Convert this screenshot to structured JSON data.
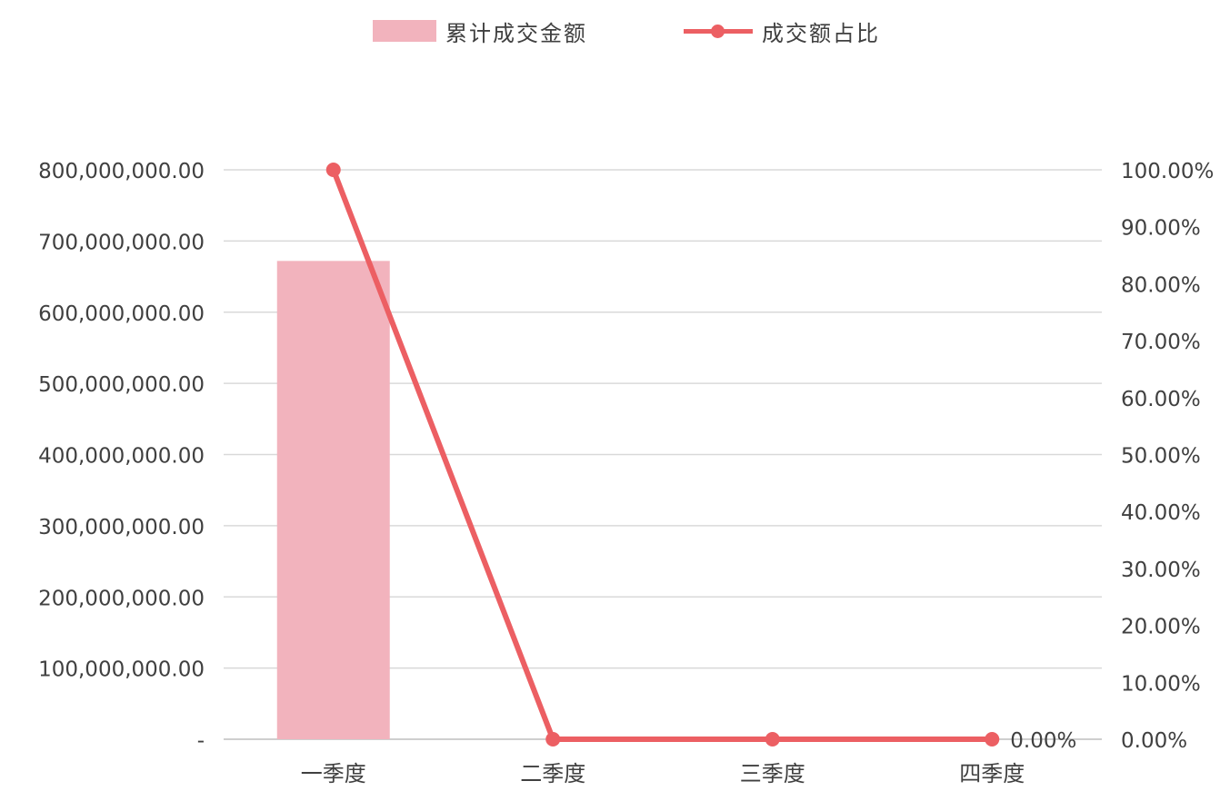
{
  "chart_data": {
    "type": "bar+line",
    "categories": [
      "一季度",
      "二季度",
      "三季度",
      "四季度"
    ],
    "series": [
      {
        "name": "累计成交金额",
        "type": "bar",
        "axis": "left",
        "values": [
          672000000,
          0,
          0,
          0
        ],
        "color": "#f2b3bd"
      },
      {
        "name": "成交额占比",
        "type": "line",
        "axis": "right",
        "values": [
          100,
          0,
          0,
          0
        ],
        "color": "#ec5f63",
        "data_labels": [
          "",
          "",
          "",
          "0.00%"
        ]
      }
    ],
    "left_axis": {
      "range": [
        0,
        800000000
      ],
      "tick_labels": [
        "-",
        "100,000,000.00",
        "200,000,000.00",
        "300,000,000.00",
        "400,000,000.00",
        "500,000,000.00",
        "600,000,000.00",
        "700,000,000.00",
        "800,000,000.00"
      ]
    },
    "right_axis": {
      "range": [
        0,
        100
      ],
      "tick_labels": [
        "0.00%",
        "10.00%",
        "20.00%",
        "30.00%",
        "40.00%",
        "50.00%",
        "60.00%",
        "70.00%",
        "80.00%",
        "90.00%",
        "100.00%"
      ]
    },
    "grid": true,
    "legend_position": "top-center",
    "colors": {
      "grid": "#d9d9d9",
      "tick_text": "#404040",
      "axis_line": "#bfbfbf"
    }
  }
}
